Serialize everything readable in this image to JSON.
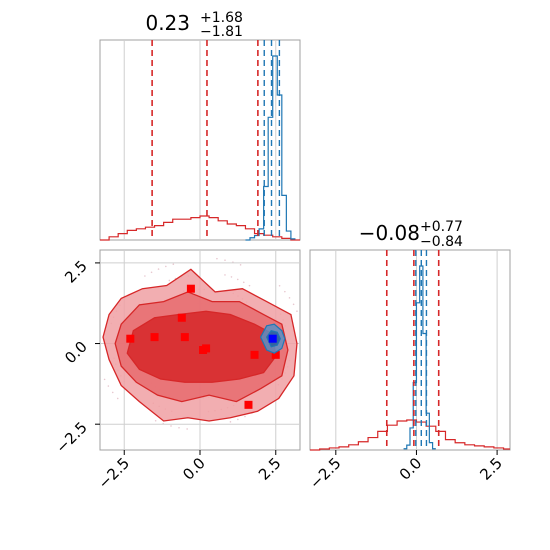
{
  "colors": {
    "red": "#d62728",
    "red_light": "#f0a0a3",
    "red_mid": "#e86b6f",
    "blue": "#1f77b4",
    "marker_red": "#ff0000",
    "marker_blue": "#0000ff",
    "grid": "#cfcfcf",
    "frame": "#a0a0a0"
  },
  "chart_data": [
    {
      "type": "histogram",
      "parameter_index": 0,
      "title": {
        "median": "0.23",
        "plus": "+1.68",
        "minus": "−1.81"
      },
      "xlim": [
        -3.3,
        3.3
      ],
      "grid": true,
      "red_hist": {
        "bin_edges": [
          -3.3,
          -3.0,
          -2.7,
          -2.4,
          -2.1,
          -1.8,
          -1.5,
          -1.2,
          -0.9,
          -0.6,
          -0.3,
          0.0,
          0.3,
          0.6,
          0.9,
          1.2,
          1.5,
          1.8,
          2.1,
          2.4,
          2.7,
          3.0,
          3.3
        ],
        "counts": [
          0,
          2,
          4,
          6,
          7,
          8,
          9,
          11,
          13,
          13,
          14,
          15,
          14,
          12,
          10,
          9,
          7,
          4,
          3,
          2,
          1,
          0
        ]
      },
      "blue_hist": {
        "bin_edges": [
          1.5,
          1.65,
          1.8,
          1.95,
          2.1,
          2.25,
          2.4,
          2.55,
          2.7,
          2.85,
          3.0,
          3.15
        ],
        "counts": [
          0,
          2,
          4,
          10,
          48,
          110,
          165,
          130,
          40,
          8,
          1
        ]
      },
      "red_quantiles": [
        -1.58,
        0.23,
        1.91
      ],
      "blue_quantiles": [
        2.12,
        2.36,
        2.62
      ]
    },
    {
      "type": "histogram",
      "parameter_index": 1,
      "title": {
        "median": "−0.08",
        "plus": "+0.77",
        "minus": "−0.84"
      },
      "xlim": [
        -3.3,
        2.9
      ],
      "xticks": [
        "−2.5",
        "0.0",
        "2.5"
      ],
      "xticks_values": [
        -2.5,
        0.0,
        2.5
      ],
      "grid": true,
      "red_hist": {
        "bin_edges": [
          -3.3,
          -3.0,
          -2.7,
          -2.4,
          -2.1,
          -1.8,
          -1.5,
          -1.2,
          -0.9,
          -0.6,
          -0.3,
          0.0,
          0.3,
          0.6,
          0.9,
          1.2,
          1.5,
          1.8,
          2.1,
          2.4,
          2.7,
          2.9
        ],
        "counts": [
          0,
          1,
          2,
          3,
          5,
          8,
          12,
          18,
          24,
          28,
          29,
          27,
          23,
          18,
          10,
          7,
          5,
          4,
          3,
          2,
          1
        ]
      },
      "blue_hist": {
        "bin_edges": [
          -0.4,
          -0.3,
          -0.2,
          -0.1,
          0.0,
          0.1,
          0.2,
          0.3,
          0.4,
          0.5,
          0.6
        ],
        "counts": [
          1,
          4,
          18,
          55,
          120,
          150,
          95,
          30,
          6,
          1
        ]
      },
      "red_quantiles": [
        -0.92,
        -0.08,
        0.69
      ],
      "blue_quantiles": [
        -0.02,
        0.15,
        0.31
      ]
    },
    {
      "type": "contour",
      "xlim": [
        -3.3,
        3.3
      ],
      "ylim": [
        -3.3,
        2.9
      ],
      "xticks": [
        "−2.5",
        "0.0",
        "2.5"
      ],
      "xticks_values": [
        -2.5,
        0.0,
        2.5
      ],
      "yticks": [
        "2.5",
        "0.0",
        "−2.5"
      ],
      "yticks_values": [
        2.5,
        0.0,
        -2.5
      ],
      "grid": true,
      "red_contours": [
        [
          [
            -3.0,
            0.9
          ],
          [
            -2.6,
            1.4
          ],
          [
            -1.9,
            1.7
          ],
          [
            -1.1,
            1.8
          ],
          [
            -0.3,
            2.3
          ],
          [
            0.5,
            1.6
          ],
          [
            1.4,
            1.7
          ],
          [
            2.2,
            1.3
          ],
          [
            3.0,
            0.9
          ],
          [
            3.2,
            0.0
          ],
          [
            3.1,
            -1.0
          ],
          [
            2.6,
            -1.7
          ],
          [
            1.9,
            -2.1
          ],
          [
            1.0,
            -2.3
          ],
          [
            0.3,
            -2.4
          ],
          [
            -0.4,
            -2.3
          ],
          [
            -1.2,
            -2.4
          ],
          [
            -2.0,
            -1.8
          ],
          [
            -2.6,
            -1.3
          ],
          [
            -3.0,
            -0.5
          ],
          [
            -3.2,
            0.2
          ]
        ],
        [
          [
            -2.6,
            0.6
          ],
          [
            -2.0,
            1.2
          ],
          [
            -1.2,
            1.3
          ],
          [
            -0.4,
            1.6
          ],
          [
            0.4,
            1.3
          ],
          [
            1.3,
            1.3
          ],
          [
            2.1,
            0.9
          ],
          [
            2.7,
            0.6
          ],
          [
            2.9,
            -0.2
          ],
          [
            2.7,
            -1.0
          ],
          [
            2.0,
            -1.4
          ],
          [
            1.2,
            -1.8
          ],
          [
            0.3,
            -1.6
          ],
          [
            -0.6,
            -1.8
          ],
          [
            -1.4,
            -1.6
          ],
          [
            -2.1,
            -1.2
          ],
          [
            -2.6,
            -0.7
          ],
          [
            -2.8,
            0.0
          ]
        ],
        [
          [
            -2.2,
            0.4
          ],
          [
            -1.5,
            0.8
          ],
          [
            -0.7,
            0.9
          ],
          [
            0.2,
            1.0
          ],
          [
            1.0,
            0.9
          ],
          [
            1.8,
            0.6
          ],
          [
            2.4,
            0.3
          ],
          [
            2.5,
            -0.4
          ],
          [
            2.1,
            -0.9
          ],
          [
            1.3,
            -1.1
          ],
          [
            0.4,
            -1.2
          ],
          [
            -0.5,
            -1.2
          ],
          [
            -1.3,
            -1.1
          ],
          [
            -2.0,
            -0.8
          ],
          [
            -2.4,
            -0.3
          ]
        ]
      ],
      "red_points": [
        [
          -2.3,
          0.15
        ],
        [
          -1.5,
          0.2
        ],
        [
          -0.3,
          1.7
        ],
        [
          -0.6,
          0.8
        ],
        [
          -0.5,
          0.2
        ],
        [
          0.1,
          -0.2
        ],
        [
          0.2,
          -0.15
        ],
        [
          1.6,
          -1.9
        ],
        [
          1.8,
          -0.35
        ],
        [
          2.5,
          -0.35
        ]
      ],
      "blue_contours": [
        [
          [
            2.0,
            0.2
          ],
          [
            2.2,
            0.55
          ],
          [
            2.45,
            0.6
          ],
          [
            2.7,
            0.4
          ],
          [
            2.8,
            0.15
          ],
          [
            2.7,
            -0.15
          ],
          [
            2.45,
            -0.3
          ],
          [
            2.2,
            -0.2
          ]
        ],
        [
          [
            2.2,
            0.2
          ],
          [
            2.35,
            0.4
          ],
          [
            2.55,
            0.35
          ],
          [
            2.65,
            0.15
          ],
          [
            2.55,
            -0.05
          ],
          [
            2.35,
            -0.1
          ]
        ]
      ],
      "blue_points": [
        [
          2.4,
          0.15
        ]
      ]
    }
  ]
}
